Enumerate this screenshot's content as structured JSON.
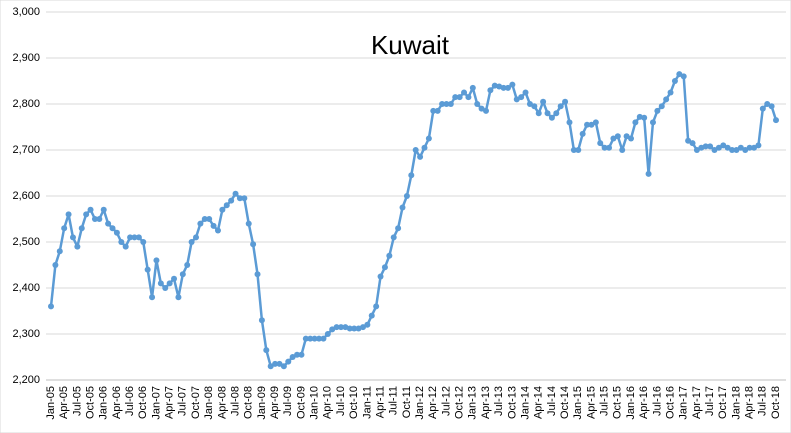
{
  "chart_data": {
    "type": "line",
    "title": "Kuwait",
    "categories": [
      "Jan-05",
      null,
      null,
      "Apr-05",
      null,
      null,
      "Jul-05",
      null,
      null,
      "Oct-05",
      null,
      null,
      "Jan-06",
      null,
      null,
      "Apr-06",
      null,
      null,
      "Jul-06",
      null,
      null,
      "Oct-06",
      null,
      null,
      "Jan-07",
      null,
      null,
      "Apr-07",
      null,
      null,
      "Jul-07",
      null,
      null,
      "Oct-07",
      null,
      null,
      "Jan-08",
      null,
      null,
      "Apr-08",
      null,
      null,
      "Jul-08",
      null,
      null,
      "Oct-08",
      null,
      null,
      "Jan-09",
      null,
      null,
      "Apr-09",
      null,
      null,
      "Jul-09",
      null,
      null,
      "Oct-09",
      null,
      null,
      "Jan-10",
      null,
      null,
      "Apr-10",
      null,
      null,
      "Jul-10",
      null,
      null,
      "Oct-10",
      null,
      null,
      "Jan-11",
      null,
      null,
      "Apr-11",
      null,
      null,
      "Jul-11",
      null,
      null,
      "Oct-11",
      null,
      null,
      "Jan-12",
      null,
      null,
      "Apr-12",
      null,
      null,
      "Jul-12",
      null,
      null,
      "Oct-12",
      null,
      null,
      "Jan-13",
      null,
      null,
      "Apr-13",
      null,
      null,
      "Jul-13",
      null,
      null,
      "Oct-13",
      null,
      null,
      "Jan-14",
      null,
      null,
      "Apr-14",
      null,
      null,
      "Jul-14",
      null,
      null,
      "Oct-14",
      null,
      null,
      "Jan-15",
      null,
      null,
      "Apr-15",
      null,
      null,
      "Jul-15",
      null,
      null,
      "Oct-15",
      null,
      null,
      "Jan-16",
      null,
      null,
      "Apr-16",
      null,
      null,
      "Jul-16",
      null,
      null,
      "Oct-16",
      null,
      null,
      "Jan-17",
      null,
      null,
      "Apr-17",
      null,
      null,
      "Jul-17",
      null,
      null,
      "Oct-17",
      null,
      null,
      "Jan-18",
      null,
      null,
      "Apr-18",
      null,
      null,
      "Jul-18",
      null,
      null,
      "Oct-18"
    ],
    "series": [
      {
        "color": "#5b9bd5",
        "values": [
          2360,
          2450,
          2480,
          2530,
          2560,
          2510,
          2490,
          2530,
          2560,
          2570,
          2550,
          2550,
          2570,
          2540,
          2530,
          2520,
          2500,
          2490,
          2510,
          2510,
          2510,
          2500,
          2440,
          2380,
          2460,
          2410,
          2400,
          2410,
          2420,
          2380,
          2430,
          2450,
          2500,
          2510,
          2540,
          2550,
          2550,
          2535,
          2525,
          2570,
          2580,
          2590,
          2605,
          2595,
          2595,
          2540,
          2495,
          2430,
          2330,
          2265,
          2230,
          2235,
          2235,
          2230,
          2240,
          2250,
          2255,
          2255,
          2290,
          2290,
          2290,
          2290,
          2290,
          2300,
          2310,
          2315,
          2315,
          2315,
          2312,
          2312,
          2312,
          2315,
          2320,
          2340,
          2360,
          2425,
          2445,
          2470,
          2510,
          2530,
          2575,
          2600,
          2645,
          2700,
          2685,
          2705,
          2725,
          2785,
          2785,
          2800,
          2800,
          2800,
          2815,
          2815,
          2825,
          2815,
          2835,
          2800,
          2790,
          2785,
          2830,
          2840,
          2838,
          2835,
          2835,
          2842,
          2810,
          2815,
          2825,
          2800,
          2795,
          2780,
          2805,
          2780,
          2770,
          2780,
          2795,
          2805,
          2760,
          2700,
          2700,
          2735,
          2755,
          2755,
          2760,
          2715,
          2705,
          2705,
          2725,
          2730,
          2700,
          2730,
          2725,
          2760,
          2772,
          2770,
          2648,
          2760,
          2785,
          2795,
          2810,
          2825,
          2850,
          2865,
          2860,
          2720,
          2715,
          2700,
          2705,
          2708,
          2708,
          2700,
          2705,
          2710,
          2705,
          2700,
          2700,
          2705,
          2700,
          2705,
          2705,
          2710,
          2790,
          2800,
          2795,
          2765
        ]
      }
    ],
    "ylim": [
      2200,
      3000
    ],
    "yticks": [
      {
        "value": 2200,
        "label": "2,200"
      },
      {
        "value": 2300,
        "label": "2,300"
      },
      {
        "value": 2400,
        "label": "2,400"
      },
      {
        "value": 2500,
        "label": "2,500"
      },
      {
        "value": 2600,
        "label": "2,600"
      },
      {
        "value": 2700,
        "label": "2,700"
      },
      {
        "value": 2800,
        "label": "2,800"
      },
      {
        "value": 2900,
        "label": "2,900"
      },
      {
        "value": 3000,
        "label": "3,000"
      }
    ],
    "grid": true
  }
}
